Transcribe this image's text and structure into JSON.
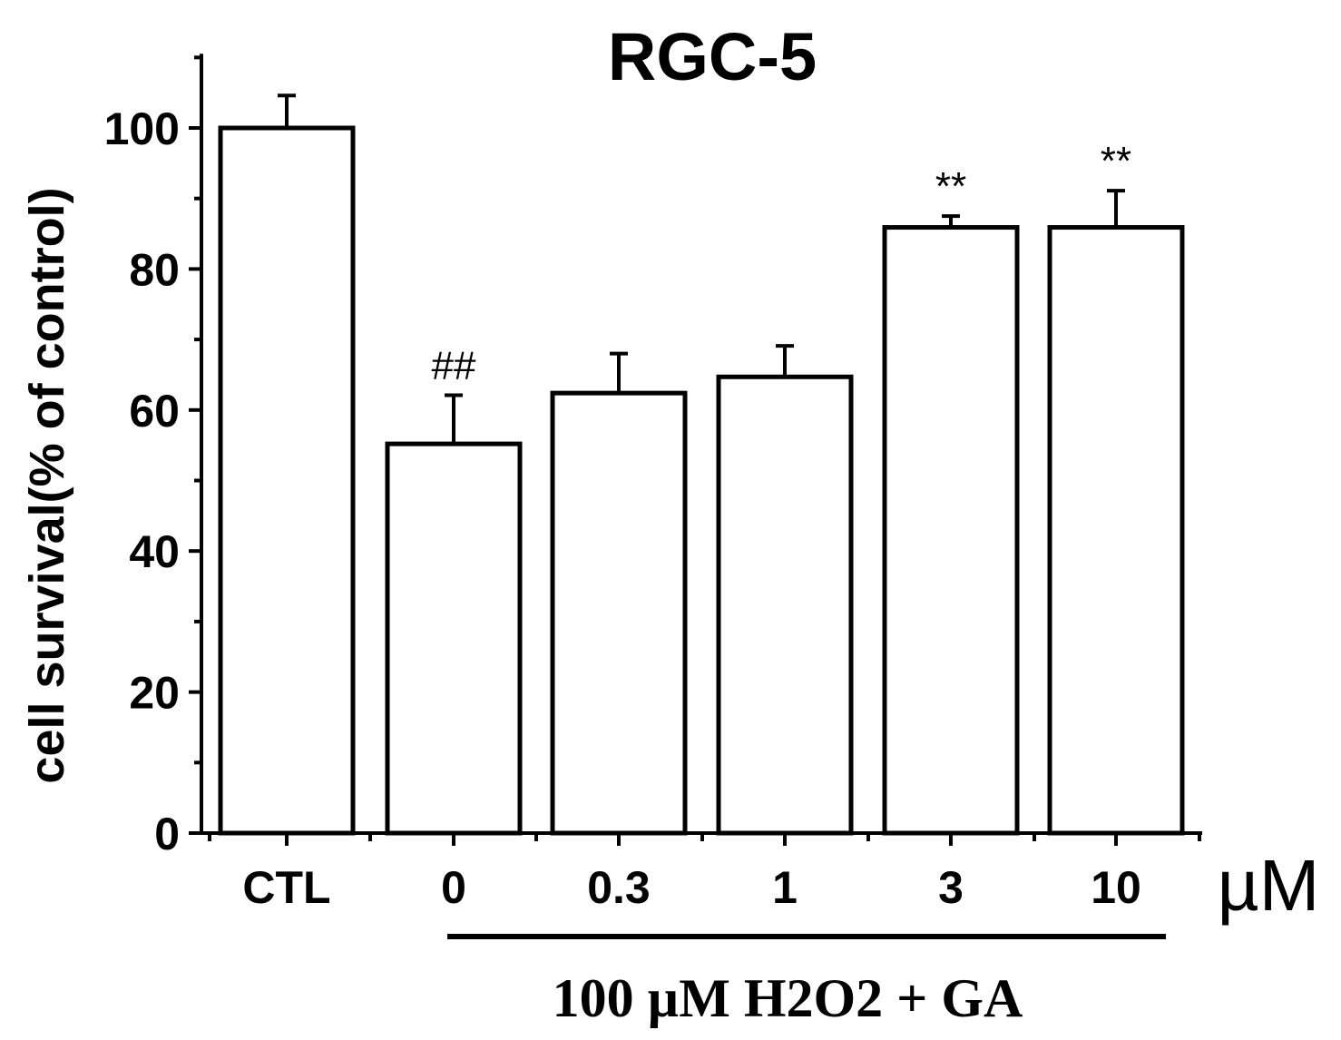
{
  "chart_data": {
    "type": "bar",
    "title": "RGC-5",
    "ylabel": "cell survival(% of control)",
    "xlabel": "",
    "ylim": [
      0,
      110
    ],
    "yticks": [
      0,
      20,
      40,
      60,
      80,
      100
    ],
    "ytick_labels": [
      "0",
      "20",
      "40",
      "60",
      "80",
      "100"
    ],
    "categories": [
      "CTL",
      "0",
      "0.3",
      "1",
      "3",
      "10"
    ],
    "values": [
      100,
      55.2,
      62.4,
      64.7,
      85.9,
      85.9
    ],
    "errors": [
      4.6,
      6.9,
      5.6,
      4.4,
      1.6,
      5.2
    ],
    "annotations": [
      "",
      "##",
      "",
      "",
      "**",
      "**"
    ],
    "x_unit": "µM",
    "treatment_label": "100 µM  H2O2 +  GA",
    "bar_fill": "#ffffff",
    "bar_stroke": "#000000",
    "grid": false
  }
}
